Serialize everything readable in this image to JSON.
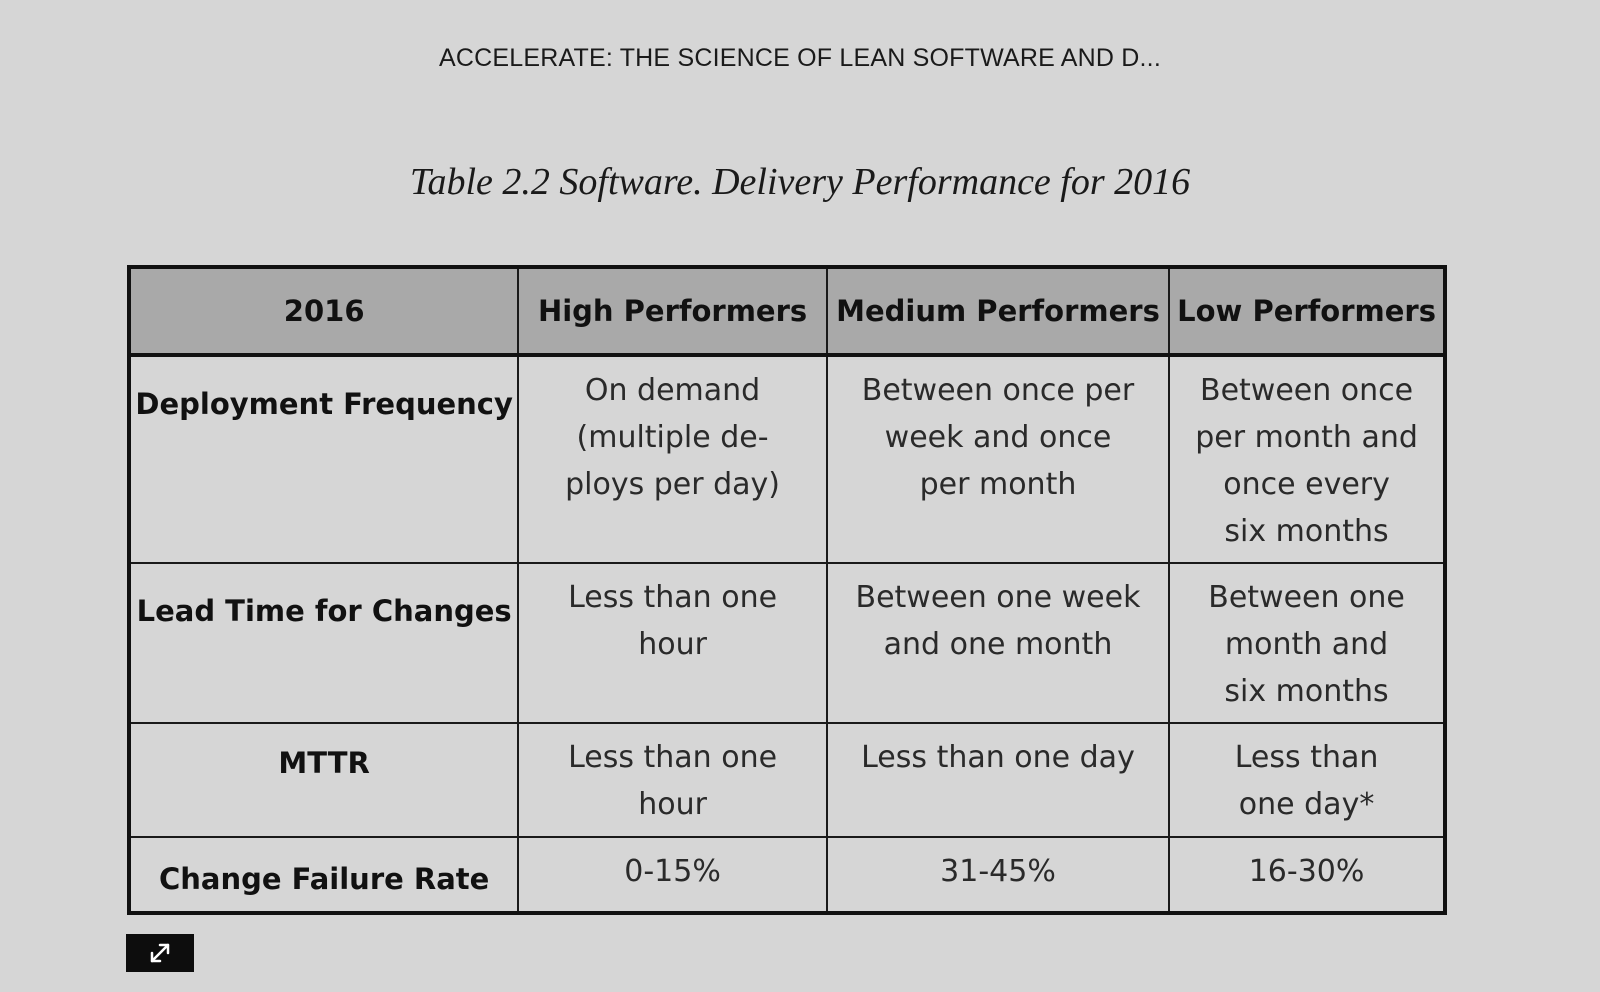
{
  "book": {
    "header_title": "ACCELERATE: THE SCIENCE OF LEAN SOFTWARE AND D..."
  },
  "table": {
    "caption": "Table 2.2 Software. Delivery Performance for 2016",
    "headers": [
      "2016",
      "High Performers",
      "Medium Performers",
      "Low Performers"
    ],
    "rows": [
      {
        "label": "Deployment Frequency",
        "high": "On demand\n(multiple de-\nploys per day)",
        "medium": "Between once per\nweek and once\nper month",
        "low": "Between once\nper month and\nonce every\nsix months"
      },
      {
        "label": "Lead Time for Changes",
        "high": "Less than one hour",
        "medium": "Between one week\nand one month",
        "low": "Between one\nmonth and\nsix months"
      },
      {
        "label": "MTTR",
        "high": "Less than one hour",
        "medium": "Less than one day",
        "low": "Less than\none day*"
      },
      {
        "label": "Change Failure Rate",
        "high": "0-15%",
        "medium": "31-45%",
        "low": "16-30%"
      }
    ]
  },
  "controls": {
    "expand_icon": "expand-arrows-icon"
  },
  "colors": {
    "page_background": "#d6d6d6",
    "header_row_background": "#a9a9a9",
    "border": "#111111",
    "expand_button_background": "#0d0d0d"
  }
}
